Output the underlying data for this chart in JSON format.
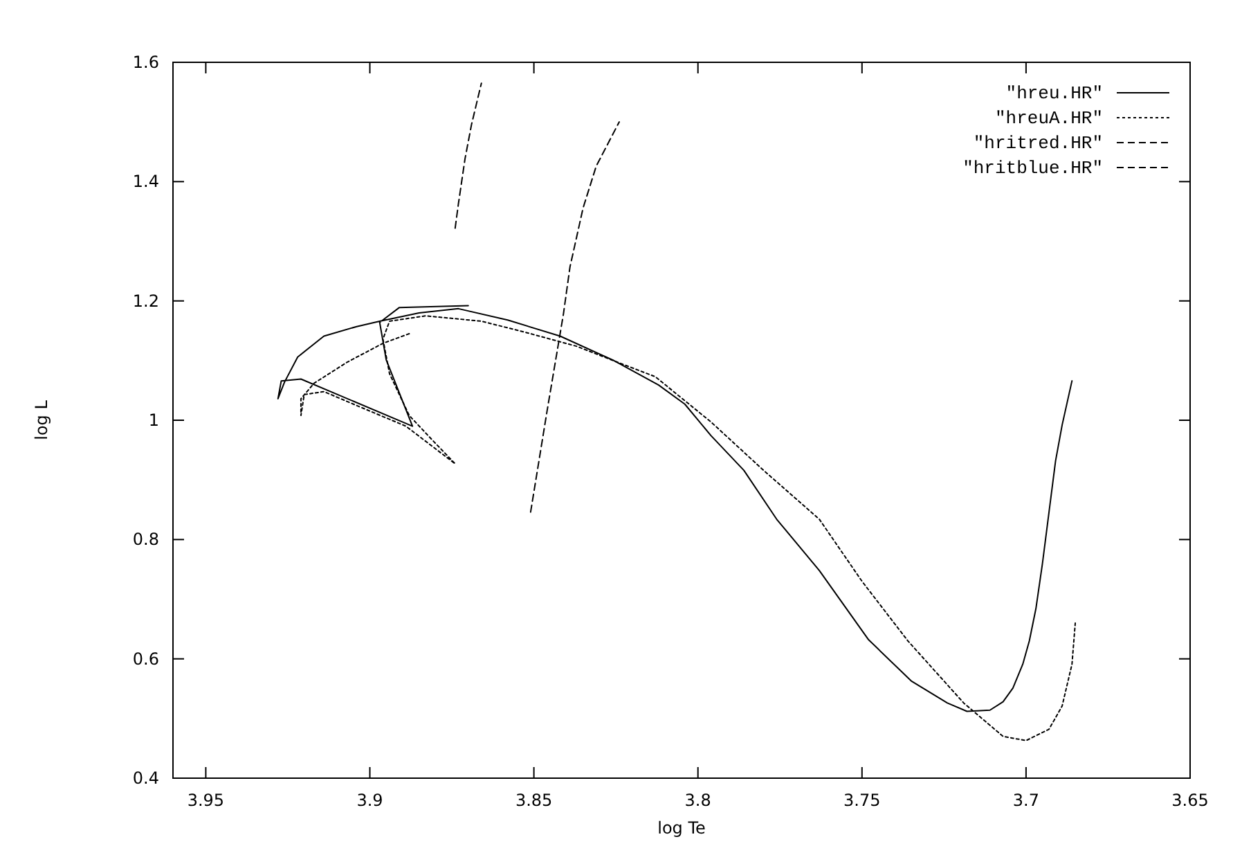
{
  "chart_data": {
    "type": "line",
    "xlabel": "log Te",
    "ylabel": "log L",
    "xlim": [
      3.96,
      3.65
    ],
    "xticks": [
      3.95,
      3.9,
      3.85,
      3.8,
      3.75,
      3.7,
      3.65
    ],
    "ylim": [
      0.4,
      1.6
    ],
    "yticks": [
      0.4,
      0.6,
      0.8,
      1,
      1.2,
      1.4,
      1.6
    ],
    "grid": false,
    "legend": "top right",
    "marker": "none",
    "series": [
      {
        "name": "\"hreu.HR\"",
        "color": "#000000",
        "line_style": "solid",
        "x": [
          3.87,
          3.891,
          3.897,
          3.895,
          3.887,
          3.921,
          3.927,
          3.928,
          3.926,
          3.922,
          3.914,
          3.904,
          3.897,
          3.885,
          3.873,
          3.858,
          3.842,
          3.826,
          3.812,
          3.804,
          3.796,
          3.786,
          3.776,
          3.763,
          3.748,
          3.735,
          3.724,
          3.718,
          3.711,
          3.707,
          3.704,
          3.701,
          3.699,
          3.697,
          3.695,
          3.693,
          3.691,
          3.689,
          3.686
        ],
        "values": [
          1.192,
          1.189,
          1.164,
          1.101,
          0.99,
          1.069,
          1.066,
          1.036,
          1.064,
          1.106,
          1.141,
          1.157,
          1.166,
          1.18,
          1.187,
          1.168,
          1.141,
          1.101,
          1.059,
          1.027,
          0.974,
          0.916,
          0.834,
          0.748,
          0.632,
          0.563,
          0.526,
          0.512,
          0.514,
          0.528,
          0.551,
          0.591,
          0.63,
          0.684,
          0.76,
          0.846,
          0.932,
          0.992,
          1.066
        ]
      },
      {
        "name": "\"hreuA.HR\"",
        "color": "#000000",
        "line_style": "dotted",
        "x": [
          3.888,
          3.896,
          3.907,
          3.917,
          3.921,
          3.921,
          3.92,
          3.914,
          3.902,
          3.889,
          3.874,
          3.881,
          3.888,
          3.894,
          3.896,
          3.894,
          3.883,
          3.866,
          3.853,
          3.837,
          3.823,
          3.813,
          3.796,
          3.78,
          3.763,
          3.75,
          3.736,
          3.719,
          3.707,
          3.7,
          3.693,
          3.689,
          3.686,
          3.685
        ],
        "values": [
          1.145,
          1.129,
          1.097,
          1.062,
          1.036,
          1.008,
          1.043,
          1.048,
          1.02,
          0.99,
          0.927,
          0.967,
          1.008,
          1.078,
          1.136,
          1.166,
          1.175,
          1.166,
          1.148,
          1.124,
          1.094,
          1.073,
          0.997,
          0.916,
          0.834,
          0.73,
          0.63,
          0.526,
          0.47,
          0.463,
          0.482,
          0.521,
          0.591,
          0.66
        ]
      },
      {
        "name": "\"hritred.HR\"",
        "color": "#000000",
        "line_style": "dashed",
        "x": [
          3.851,
          3.846,
          3.841,
          3.839,
          3.835,
          3.831,
          3.824
        ],
        "values": [
          0.846,
          1.015,
          1.178,
          1.257,
          1.356,
          1.426,
          1.5
        ]
      },
      {
        "name": "\"hritblue.HR\"",
        "color": "#000000",
        "line_style": "dashed",
        "x": [
          3.874,
          3.873,
          3.871,
          3.869,
          3.866
        ],
        "values": [
          1.322,
          1.363,
          1.438,
          1.496,
          1.565
        ]
      }
    ]
  }
}
